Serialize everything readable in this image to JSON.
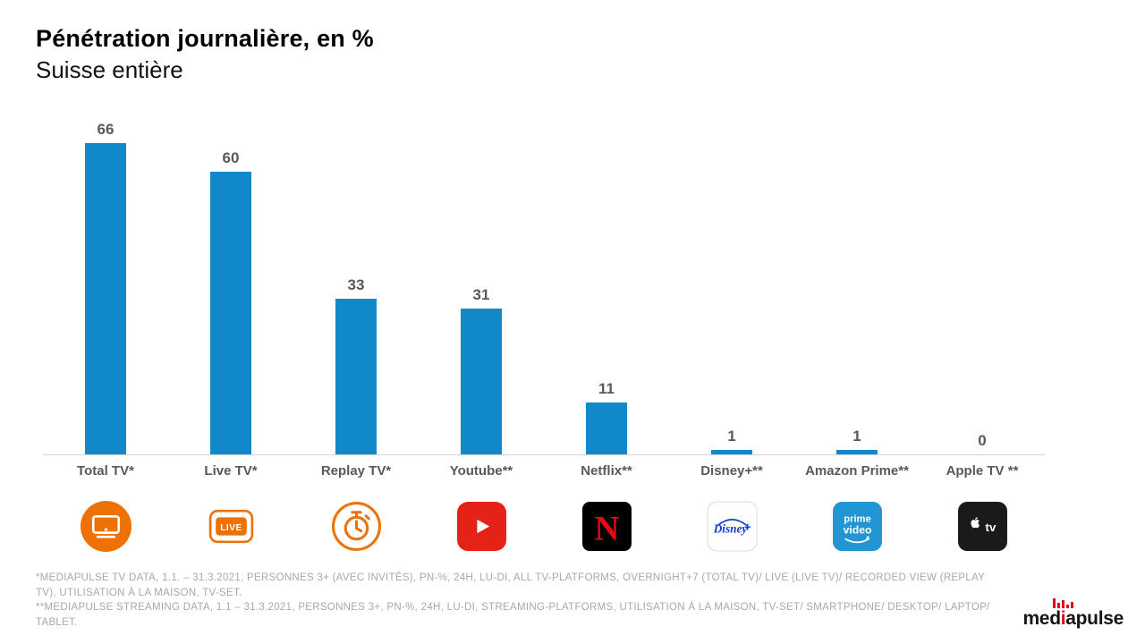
{
  "header": {
    "title": "Pénétration journalière, en %",
    "subtitle": "Suisse entière"
  },
  "chart_data": {
    "type": "bar",
    "title": "Pénétration journalière, en %",
    "subtitle": "Suisse entière",
    "categories": [
      "Total TV*",
      "Live TV*",
      "Replay TV*",
      "Youtube**",
      "Netflix**",
      "Disney+**",
      "Amazon Prime**",
      "Apple TV **"
    ],
    "values": [
      66,
      60,
      33,
      31,
      11,
      1,
      1,
      0
    ],
    "xlabel": "",
    "ylabel": "",
    "ylim": [
      0,
      70
    ],
    "grid": false,
    "legend": false,
    "bar_color": "#1188c9",
    "value_label_color": "#595959",
    "icons": [
      "tv-icon",
      "live-icon",
      "stopwatch-icon",
      "youtube-icon",
      "netflix-icon",
      "disneyplus-icon",
      "primevideo-icon",
      "appletv-icon"
    ]
  },
  "footnotes": [
    "*MEDIAPULSE TV DATA, 1.1. – 31.3.2021, PERSONNES 3+ (AVEC INVITÉS), PN-%, 24H, LU-DI, ALL TV-PLATFORMS, OVERNIGHT+7 (TOTAL TV)/ LIVE (LIVE TV)/ RECORDED VIEW (REPLAY TV), UTILISATION À LA MAISON, TV-SET.",
    "**MEDIAPULSE STREAMING DATA, 1.1 – 31.3.2021, PERSONNES 3+, PN-%, 24H, LU-DI, STREAMING-PLATFORMS, UTILISATION À LA MAISON, TV-SET/ SMARTPHONE/ DESKTOP/ LAPTOP/ TABLET."
  ],
  "logo": {
    "part1": "med",
    "part2": "i",
    "part3": "apulse"
  }
}
